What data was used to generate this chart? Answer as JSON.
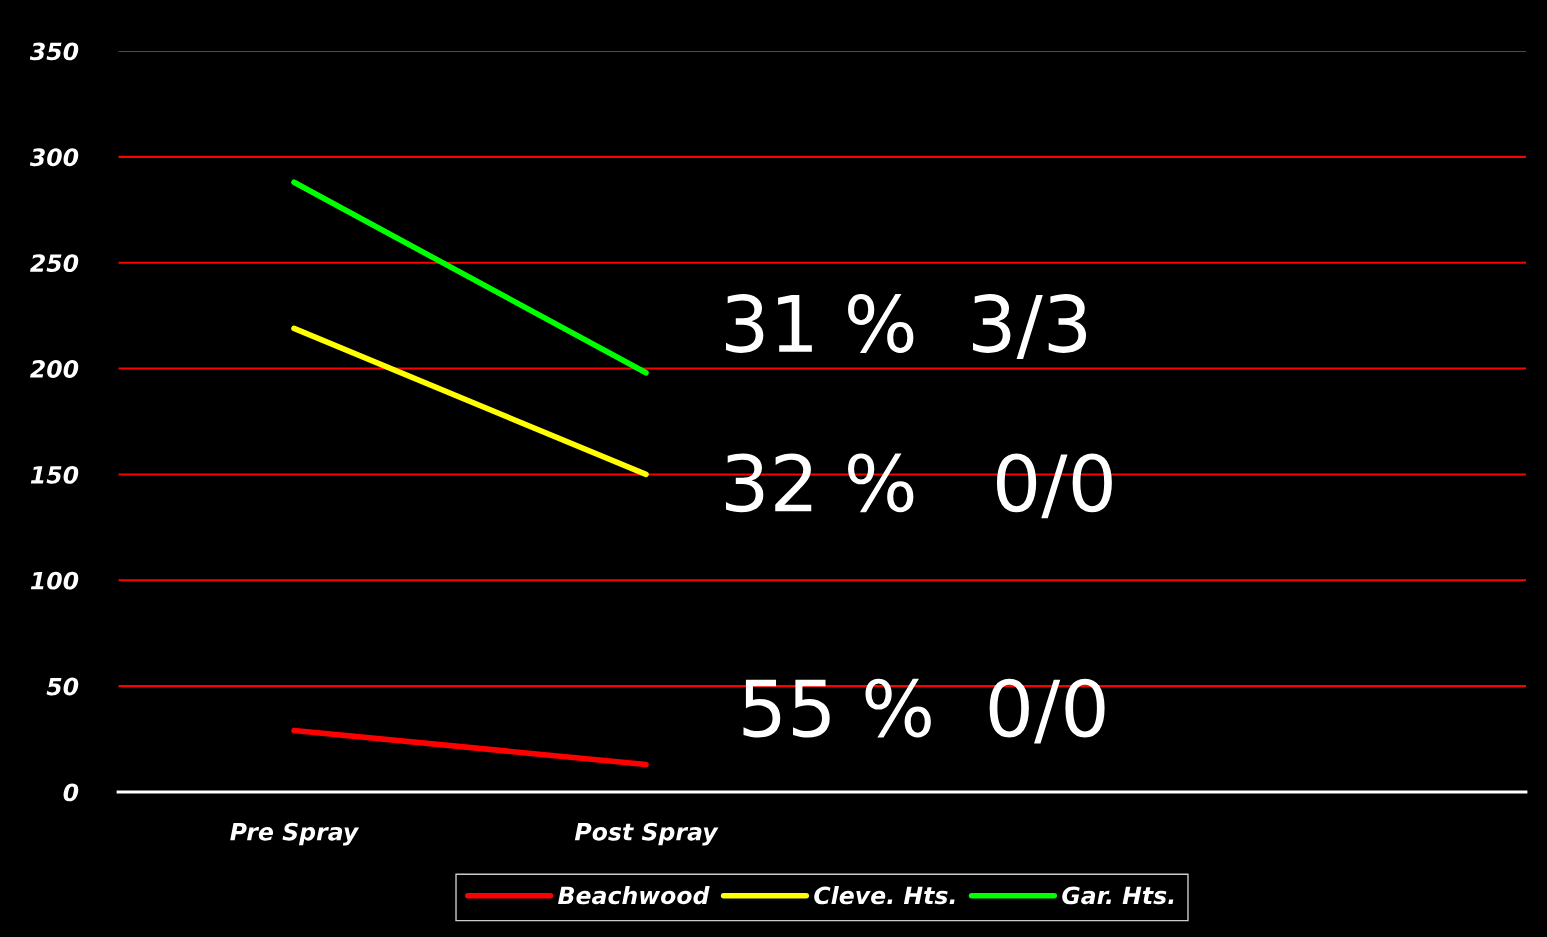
{
  "chart_data": {
    "type": "line",
    "categories": [
      "Pre Spray",
      "Post Spray",
      null,
      null
    ],
    "series": [
      {
        "name": "Beachwood",
        "color": "#ff0000",
        "values": [
          29,
          13,
          null,
          null
        ]
      },
      {
        "name": "Cleve. Hts.",
        "color": "#ffff00",
        "values": [
          219,
          150,
          null,
          null
        ]
      },
      {
        "name": "Gar. Hts.",
        "color": "#00ff00",
        "values": [
          288,
          198,
          null,
          null
        ]
      }
    ],
    "ylim": [
      0,
      350
    ],
    "yticks": [
      0,
      50,
      100,
      150,
      200,
      250,
      300,
      350
    ],
    "grid": "y",
    "legend": "bottom",
    "marker": "none",
    "line_style": "solid",
    "annotations": [
      "31 %  3/3",
      "32 %   0/0",
      "55 %  0/0"
    ]
  }
}
